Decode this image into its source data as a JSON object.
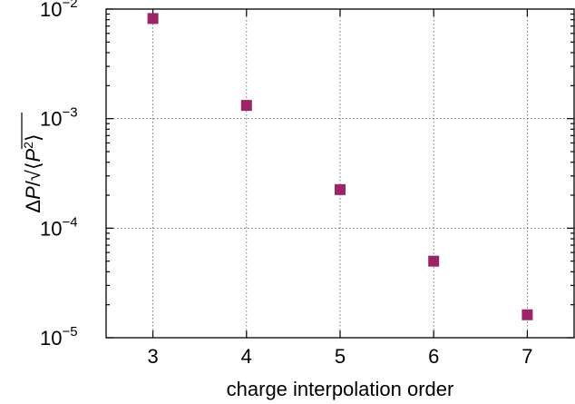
{
  "chart_data": {
    "type": "scatter",
    "title": "",
    "xlabel": "charge interpolation order",
    "ylabel_parts": {
      "delta": "Δ",
      "numerator": "P",
      "slash": "/",
      "sqrt": "√",
      "angle_open": "⟨",
      "inner": "P",
      "sup": "2",
      "angle_close": "⟩"
    },
    "x_ticks": [
      "3",
      "4",
      "5",
      "6",
      "7"
    ],
    "y_scale": "log",
    "y_ticks": [
      {
        "base": "10",
        "exp": "−2"
      },
      {
        "base": "10",
        "exp": "−3"
      },
      {
        "base": "10",
        "exp": "−4"
      },
      {
        "base": "10",
        "exp": "−5"
      }
    ],
    "xlim": [
      2.5,
      7.5
    ],
    "ylim": [
      1e-05,
      0.01
    ],
    "grid": true,
    "legend": "none",
    "marker": "square",
    "color": "#9b2566",
    "x": [
      3,
      4,
      5,
      6,
      7
    ],
    "y": [
      0.0082,
      0.00132,
      0.000225,
      5e-05,
      1.62e-05
    ]
  }
}
